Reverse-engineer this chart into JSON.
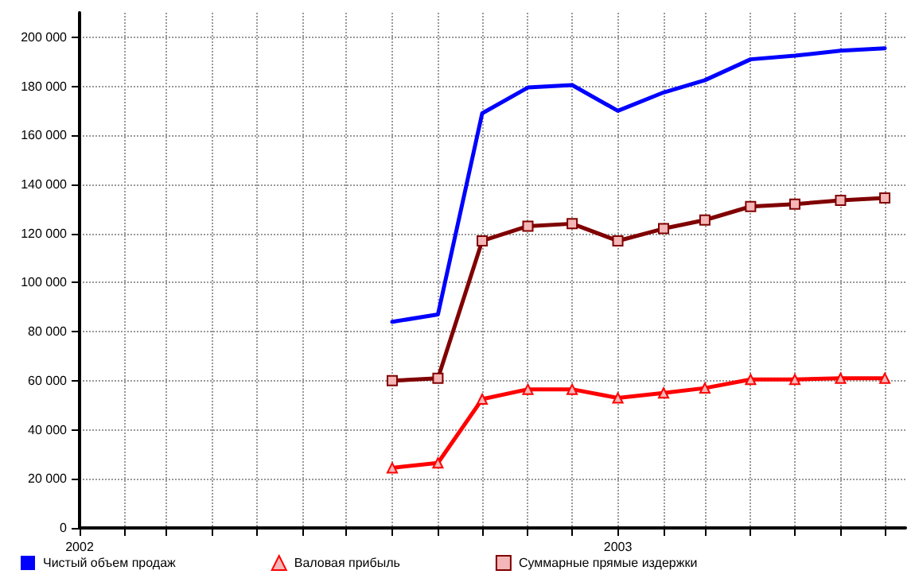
{
  "chart_data": {
    "type": "line",
    "x": [
      "2002-08",
      "2002-09",
      "2002-10",
      "2002-11",
      "2002-12",
      "2003-01",
      "2003-02",
      "2003-03",
      "2003-04",
      "2003-05",
      "2003-06",
      "2003-07"
    ],
    "series": [
      {
        "name": "Чистый объем продаж",
        "color": "#0000ff",
        "marker": "none",
        "values": [
          84000,
          87000,
          169000,
          179500,
          180500,
          170000,
          177500,
          182500,
          191000,
          192500,
          194500,
          195500
        ]
      },
      {
        "name": "Валовая прибыль",
        "color": "#ff0000",
        "marker": "triangle",
        "values": [
          24500,
          26500,
          52500,
          56500,
          56500,
          53000,
          55000,
          57000,
          60500,
          60500,
          61000,
          61000
        ]
      },
      {
        "name": "Суммарные прямые издержки",
        "color": "#800000",
        "marker": "square",
        "values": [
          60000,
          61000,
          117000,
          123000,
          124000,
          117000,
          122000,
          125500,
          131000,
          132000,
          133500,
          134500
        ]
      }
    ],
    "xlim": [
      "2002-01",
      "2003-07-15"
    ],
    "xticks": [
      {
        "value": "2002-01",
        "label": "2002"
      },
      {
        "value": "2002-02",
        "label": null
      },
      {
        "value": "2002-03",
        "label": null
      },
      {
        "value": "2002-04",
        "label": null
      },
      {
        "value": "2002-05",
        "label": null
      },
      {
        "value": "2002-06",
        "label": null
      },
      {
        "value": "2002-07",
        "label": null
      },
      {
        "value": "2002-08",
        "label": null
      },
      {
        "value": "2002-09",
        "label": null
      },
      {
        "value": "2002-10",
        "label": null
      },
      {
        "value": "2002-11",
        "label": null
      },
      {
        "value": "2002-12",
        "label": null
      },
      {
        "value": "2003-01",
        "label": "2003"
      },
      {
        "value": "2003-02",
        "label": null
      },
      {
        "value": "2003-03",
        "label": null
      },
      {
        "value": "2003-04",
        "label": null
      },
      {
        "value": "2003-05",
        "label": null
      },
      {
        "value": "2003-06",
        "label": null
      },
      {
        "value": "2003-07",
        "label": null
      }
    ],
    "ylim": [
      0,
      210000
    ],
    "yticks": [
      0,
      {
        "value": 20000,
        "label": "20 000"
      },
      {
        "value": 40000,
        "label": "40 000"
      },
      {
        "value": 60000,
        "label": "60 000"
      },
      {
        "value": 80000,
        "label": "80 000"
      },
      {
        "value": 100000,
        "label": "100 000"
      },
      {
        "value": 120000,
        "label": "120 000"
      },
      {
        "value": 140000,
        "label": "140 000"
      },
      {
        "value": 160000,
        "label": "160 000"
      },
      {
        "value": 180000,
        "label": "180 000"
      },
      {
        "value": 200000,
        "label": "200 000"
      }
    ],
    "grid": true,
    "legend": "bottom",
    "line_style": "solid"
  }
}
